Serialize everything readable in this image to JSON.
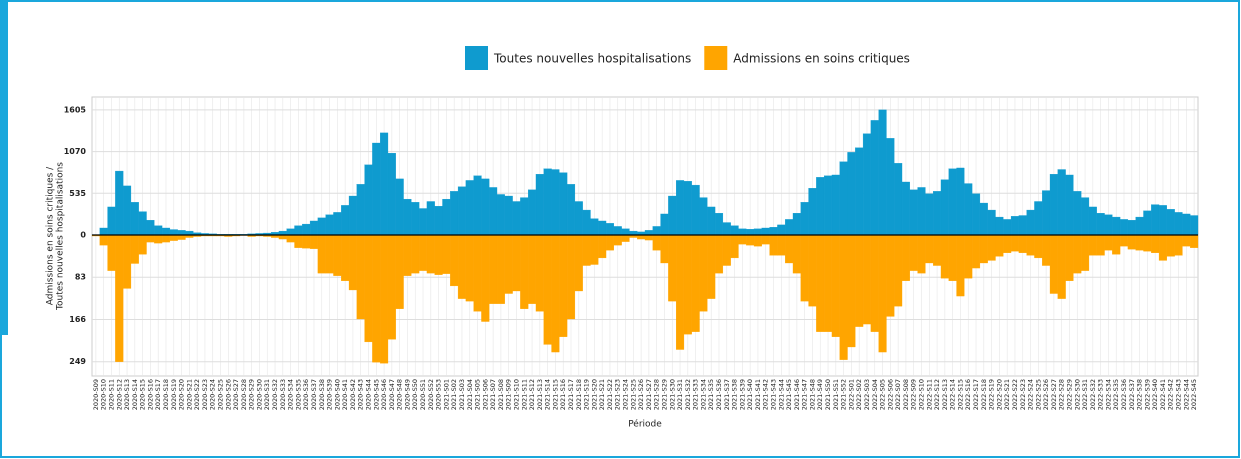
{
  "chart_data": {
    "type": "bar",
    "x_label": "Période",
    "y_label": [
      "Admissions en soins critiques /",
      "Toutes nouvelles hospitalisations"
    ],
    "legend": "top",
    "grid": true,
    "categories": [
      "2020-S09",
      "2020-S10",
      "2020-S11",
      "2020-S12",
      "2020-S13",
      "2020-S14",
      "2020-S15",
      "2020-S16",
      "2020-S17",
      "2020-S18",
      "2020-S19",
      "2020-S20",
      "2020-S21",
      "2020-S22",
      "2020-S23",
      "2020-S24",
      "2020-S25",
      "2020-S26",
      "2020-S27",
      "2020-S28",
      "2020-S29",
      "2020-S30",
      "2020-S31",
      "2020-S32",
      "2020-S33",
      "2020-S34",
      "2020-S35",
      "2020-S36",
      "2020-S37",
      "2020-S38",
      "2020-S39",
      "2020-S40",
      "2020-S41",
      "2020-S42",
      "2020-S43",
      "2020-S44",
      "2020-S45",
      "2020-S46",
      "2020-S47",
      "2020-S48",
      "2020-S49",
      "2020-S50",
      "2020-S51",
      "2020-S52",
      "2020-S53",
      "2021-S01",
      "2021-S02",
      "2021-S03",
      "2021-S04",
      "2021-S05",
      "2021-S06",
      "2021-S07",
      "2021-S08",
      "2021-S09",
      "2021-S10",
      "2021-S11",
      "2021-S12",
      "2021-S13",
      "2021-S14",
      "2021-S15",
      "2021-S16",
      "2021-S17",
      "2021-S18",
      "2021-S19",
      "2021-S20",
      "2021-S21",
      "2021-S22",
      "2021-S23",
      "2021-S24",
      "2021-S25",
      "2021-S26",
      "2021-S27",
      "2021-S28",
      "2021-S29",
      "2021-S30",
      "2021-S31",
      "2021-S32",
      "2021-S33",
      "2021-S34",
      "2021-S35",
      "2021-S36",
      "2021-S37",
      "2021-S38",
      "2021-S39",
      "2021-S40",
      "2021-S41",
      "2021-S42",
      "2021-S43",
      "2021-S44",
      "2021-S45",
      "2021-S46",
      "2021-S47",
      "2021-S48",
      "2021-S49",
      "2021-S50",
      "2021-S51",
      "2021-S52",
      "2022-S01",
      "2022-S02",
      "2022-S03",
      "2022-S04",
      "2022-S05",
      "2022-S06",
      "2022-S07",
      "2022-S08",
      "2022-S09",
      "2022-S10",
      "2022-S11",
      "2022-S12",
      "2022-S13",
      "2022-S14",
      "2022-S15",
      "2022-S16",
      "2022-S17",
      "2022-S18",
      "2022-S19",
      "2022-S20",
      "2022-S21",
      "2022-S22",
      "2022-S23",
      "2022-S24",
      "2022-S25",
      "2022-S26",
      "2022-S27",
      "2022-S28",
      "2022-S29",
      "2022-S30",
      "2022-S31",
      "2022-S32",
      "2022-S33",
      "2022-S34",
      "2022-S35",
      "2022-S36",
      "2022-S37",
      "2022-S38",
      "2022-S39",
      "2022-S40",
      "2022-S41",
      "2022-S42",
      "2022-S43",
      "2022-S44",
      "2022-S45"
    ],
    "series": [
      {
        "name": "Toutes nouvelles hospitalisations",
        "color": "#0f9bcf",
        "values": [
          5,
          90,
          360,
          820,
          630,
          420,
          300,
          190,
          120,
          90,
          70,
          60,
          50,
          30,
          20,
          15,
          10,
          10,
          10,
          10,
          15,
          20,
          25,
          35,
          50,
          80,
          120,
          140,
          180,
          220,
          260,
          290,
          380,
          500,
          650,
          900,
          1180,
          1310,
          1050,
          720,
          460,
          420,
          340,
          430,
          370,
          460,
          560,
          620,
          700,
          760,
          720,
          610,
          520,
          500,
          430,
          480,
          580,
          780,
          850,
          840,
          800,
          650,
          430,
          320,
          210,
          180,
          150,
          110,
          80,
          50,
          40,
          60,
          110,
          270,
          500,
          700,
          690,
          640,
          480,
          360,
          280,
          160,
          120,
          80,
          75,
          80,
          90,
          100,
          130,
          200,
          280,
          420,
          600,
          740,
          760,
          770,
          940,
          1060,
          1120,
          1300,
          1470,
          1605,
          1240,
          920,
          680,
          580,
          610,
          530,
          560,
          710,
          850,
          860,
          660,
          530,
          410,
          320,
          230,
          200,
          240,
          250,
          320,
          430,
          570,
          780,
          840,
          770,
          560,
          480,
          360,
          280,
          260,
          230,
          200,
          190,
          230,
          310,
          390,
          380,
          330,
          290,
          270,
          250
        ]
      },
      {
        "name": "Admissions en soins critiques",
        "color": "#ffa500",
        "axis": "y2",
        "values": [
          2,
          20,
          70,
          249,
          105,
          56,
          38,
          14,
          16,
          14,
          11,
          9,
          5,
          3,
          2,
          2,
          2,
          3,
          2,
          1,
          3,
          2,
          3,
          5,
          8,
          14,
          25,
          26,
          27,
          75,
          75,
          80,
          90,
          108,
          165,
          210,
          250,
          252,
          205,
          145,
          80,
          75,
          70,
          75,
          78,
          76,
          100,
          125,
          130,
          150,
          170,
          135,
          135,
          115,
          110,
          145,
          135,
          150,
          215,
          230,
          200,
          165,
          110,
          60,
          58,
          45,
          30,
          20,
          13,
          5,
          8,
          10,
          30,
          55,
          130,
          225,
          195,
          190,
          150,
          125,
          75,
          60,
          45,
          18,
          20,
          22,
          18,
          40,
          40,
          55,
          75,
          130,
          140,
          190,
          190,
          200,
          245,
          220,
          180,
          175,
          190,
          230,
          160,
          140,
          90,
          70,
          75,
          55,
          60,
          85,
          90,
          120,
          85,
          65,
          55,
          50,
          42,
          35,
          32,
          35,
          40,
          45,
          60,
          115,
          125,
          90,
          75,
          70,
          40,
          40,
          30,
          38,
          22,
          28,
          30,
          32,
          35,
          50,
          42,
          40,
          22,
          25
        ]
      }
    ],
    "ylim": [
      0,
      1770
    ],
    "yticks": [
      0,
      535,
      1070,
      1605
    ],
    "y2lim": [
      0,
      277
    ],
    "y2ticks": [
      83,
      166,
      249
    ]
  }
}
